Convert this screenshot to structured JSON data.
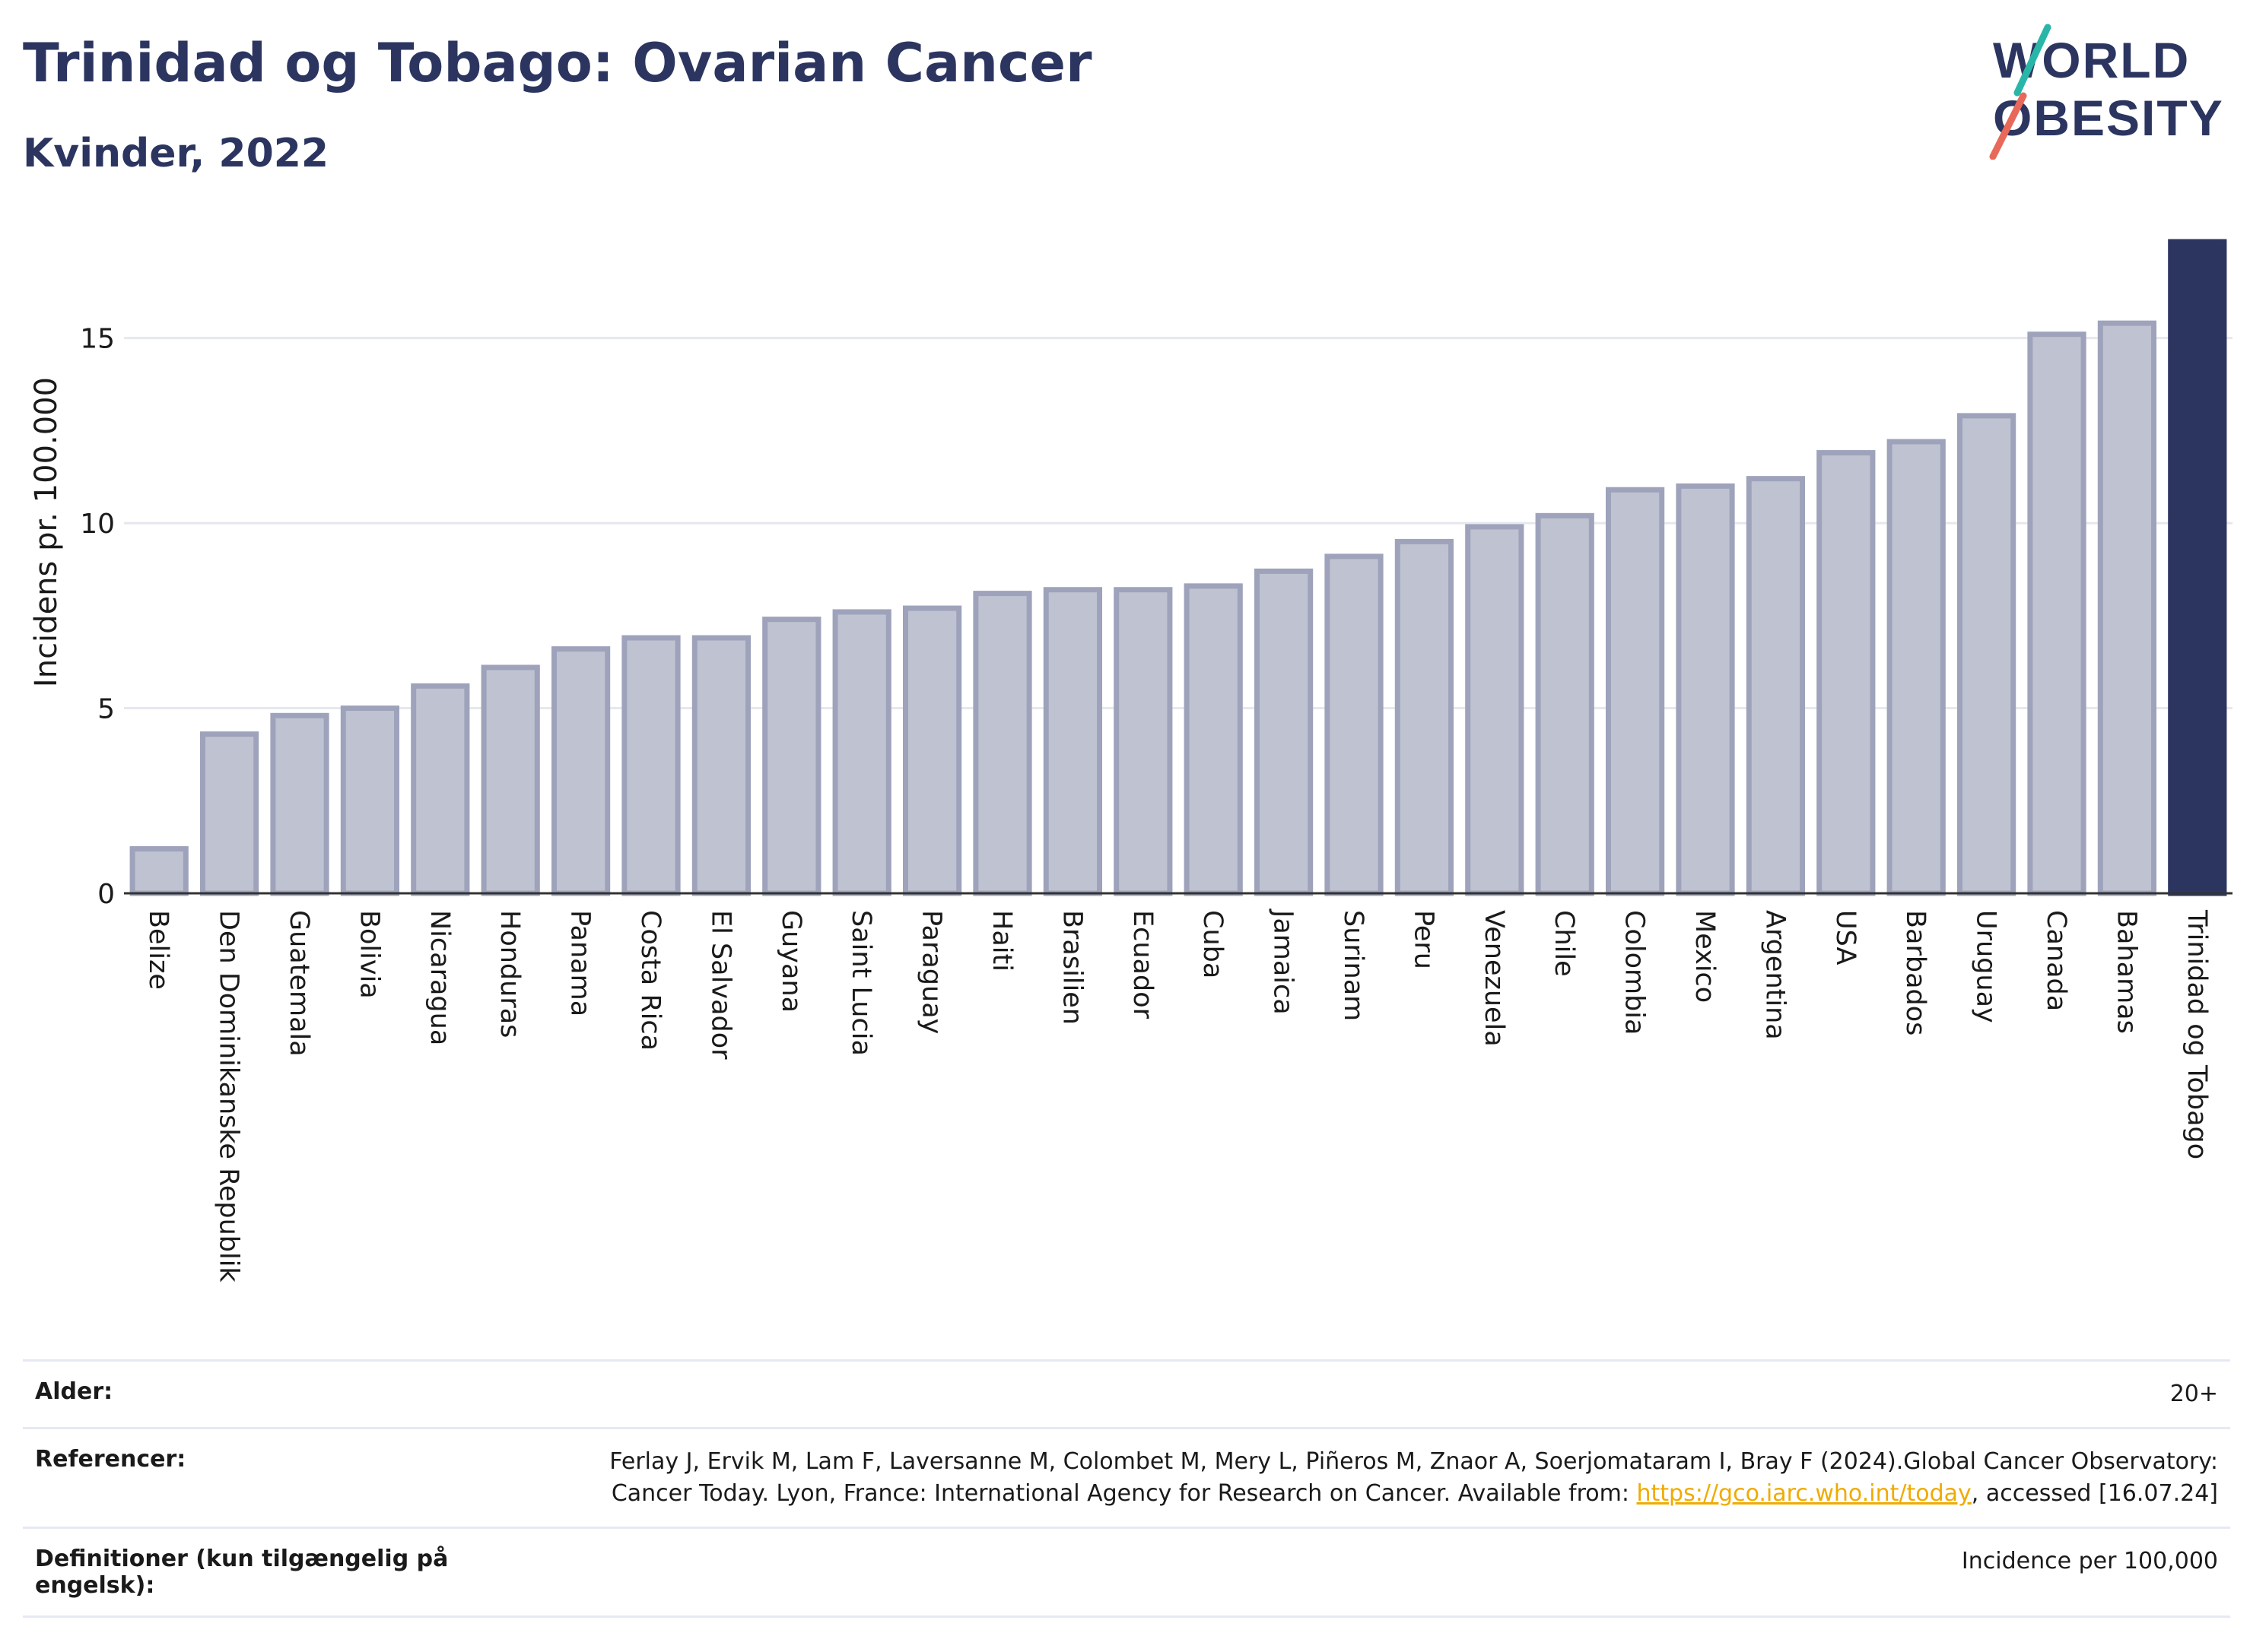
{
  "header": {
    "title": "Trinidad og Tobago: Ovarian Cancer",
    "subtitle": "Kvinder, 2022"
  },
  "logo": {
    "line1": "WORLD",
    "line2": "OBESITY"
  },
  "colors": {
    "bar": "#bfc3d1",
    "bar_border": "#9ea3bb",
    "highlight": "#2b3560",
    "grid": "#e6e8ef",
    "title": "#2b3560",
    "link": "#f0ab00"
  },
  "chart_data": {
    "type": "bar",
    "ylabel": "Incidens pr. 100.000",
    "ylim": [
      0,
      17.6
    ],
    "yticks": [
      0,
      5,
      10,
      15
    ],
    "grid": true,
    "highlight_category": "Trinidad og Tobago",
    "categories": [
      "Belize",
      "Den Dominikanske Republik",
      "Guatemala",
      "Bolivia",
      "Nicaragua",
      "Honduras",
      "Panama",
      "Costa Rica",
      "El Salvador",
      "Guyana",
      "Saint Lucia",
      "Paraguay",
      "Haiti",
      "Brasilien",
      "Ecuador",
      "Cuba",
      "Jamaica",
      "Surinam",
      "Peru",
      "Venezuela",
      "Chile",
      "Colombia",
      "Mexico",
      "Argentina",
      "USA",
      "Barbados",
      "Uruguay",
      "Canada",
      "Bahamas",
      "Trinidad og Tobago"
    ],
    "values": [
      1.2,
      4.3,
      4.8,
      5.0,
      5.6,
      6.1,
      6.6,
      6.9,
      6.9,
      7.4,
      7.6,
      7.7,
      8.1,
      8.2,
      8.2,
      8.3,
      8.7,
      9.1,
      9.5,
      9.9,
      10.2,
      10.9,
      11.0,
      11.2,
      11.9,
      12.2,
      12.9,
      15.1,
      15.4,
      17.6
    ]
  },
  "info": {
    "age_label": "Alder:",
    "age_value": "20+",
    "ref_label": "Referencer:",
    "ref_text_1": "Ferlay J, Ervik M, Lam F, Laversanne M, Colombet M, Mery L, Piñeros M, Znaor A, Soerjomataram I, Bray F (2024).Global Cancer Observatory: Cancer Today. Lyon, France: International Agency for Research on Cancer. Available from: ",
    "ref_link": "https://gco.iarc.who.int/today",
    "ref_text_2": ", accessed [16.07.24]",
    "def_label": "Definitioner (kun tilgængelig på engelsk):",
    "def_value": "Incidence per 100,000"
  }
}
